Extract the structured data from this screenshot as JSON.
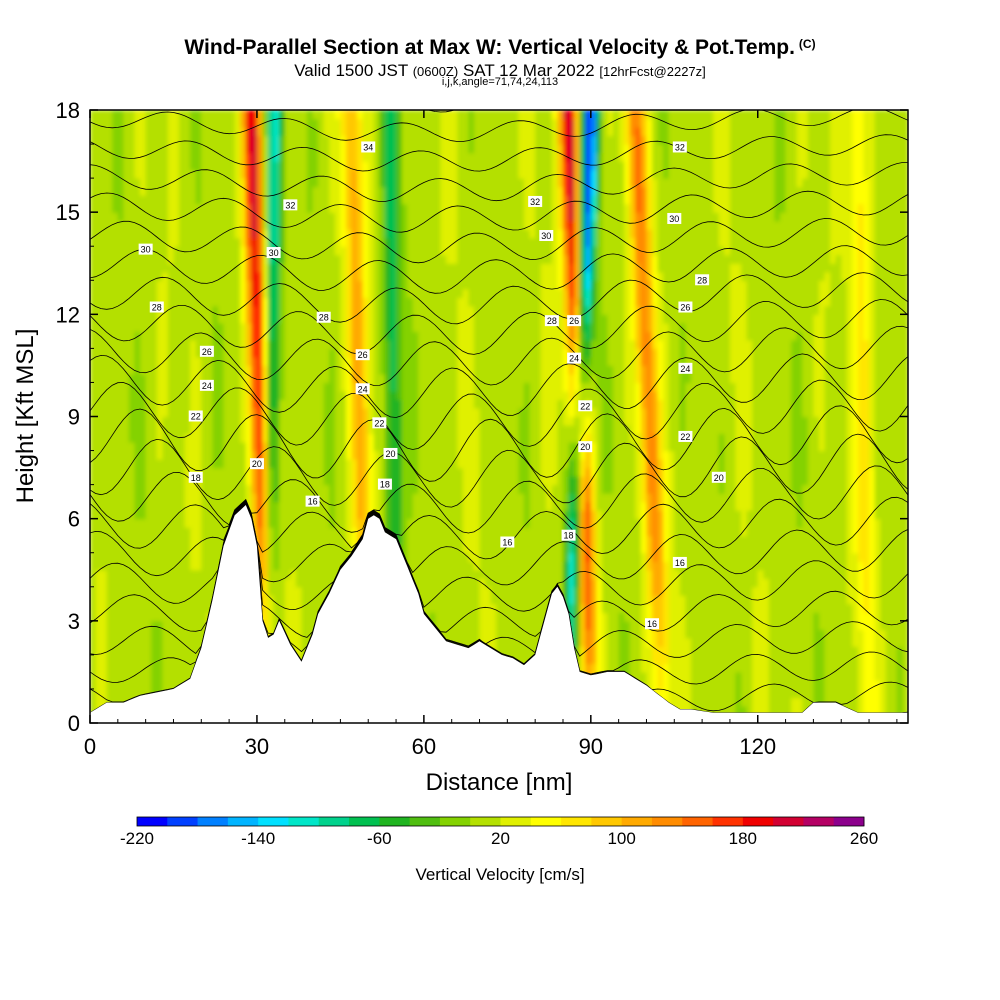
{
  "header": {
    "title": "Wind-Parallel Section at Max W: Vertical Velocity & Pot.Temp.",
    "copyright": "(C)",
    "valid_a": "Valid 1500 JST",
    "valid_utc": "(0600Z)",
    "valid_b": "SAT 12 Mar 2022",
    "forecast": "[12hrFcst@2227z]",
    "indices": "i,j,k,angle=71,74,24,113"
  },
  "chart_data": {
    "type": "heatmap",
    "xlabel": "Distance [nm]",
    "ylabel": "Height [Kft MSL]",
    "xlim": [
      0,
      147
    ],
    "ylim": [
      0,
      18
    ],
    "x_ticks": [
      0,
      30,
      60,
      90,
      120
    ],
    "y_ticks": [
      0,
      3,
      6,
      9,
      12,
      15,
      18
    ],
    "colorbar": {
      "label": "Vertical Velocity [cm/s]",
      "min": -220,
      "max": 260,
      "step": 20,
      "tick_values": [
        -220,
        -140,
        -60,
        20,
        100,
        180,
        260
      ],
      "tick_labels": [
        "-220",
        "-140",
        "-60",
        "20",
        "100",
        "180",
        "260"
      ],
      "colors": [
        "#0000ff",
        "#0040ff",
        "#0080ff",
        "#00b4ff",
        "#00e0ff",
        "#00e6c8",
        "#00d28c",
        "#00c050",
        "#20b420",
        "#50be10",
        "#84d200",
        "#b4e000",
        "#e0f000",
        "#ffff00",
        "#ffe600",
        "#ffc800",
        "#ffaa00",
        "#ff8c00",
        "#ff6400",
        "#ff3200",
        "#f00000",
        "#d20032",
        "#b40064",
        "#8c008c"
      ]
    },
    "terrain_kft": {
      "x": [
        0,
        3,
        6,
        9,
        12,
        15,
        18,
        20,
        22,
        24,
        26,
        28,
        29,
        30,
        31,
        32,
        33,
        34,
        36,
        38,
        40,
        41,
        43,
        45,
        47,
        49,
        50,
        51,
        52,
        53,
        55,
        57,
        59,
        60,
        62,
        64,
        66,
        68,
        70,
        72,
        74,
        76,
        78,
        80,
        82,
        83,
        84,
        85,
        86,
        87,
        88,
        90,
        93,
        96,
        100,
        104,
        106,
        108,
        112,
        120,
        128,
        130,
        134,
        138,
        142,
        147
      ],
      "h": [
        0.3,
        0.6,
        0.6,
        0.8,
        0.9,
        1.0,
        1.3,
        2.2,
        3.6,
        5.2,
        6.1,
        6.4,
        6.0,
        5.2,
        3.0,
        2.5,
        2.6,
        3.0,
        2.3,
        1.8,
        2.6,
        3.2,
        3.8,
        4.5,
        4.9,
        5.4,
        6.0,
        6.1,
        6.0,
        5.6,
        5.4,
        4.6,
        3.8,
        3.2,
        2.8,
        2.4,
        2.3,
        2.2,
        2.4,
        2.2,
        2.0,
        1.9,
        1.7,
        2.0,
        3.2,
        3.8,
        4.0,
        3.7,
        3.2,
        2.2,
        1.5,
        1.4,
        1.5,
        1.5,
        1.1,
        0.6,
        0.4,
        0.4,
        0.3,
        0.3,
        0.3,
        0.6,
        0.6,
        0.3,
        0.3,
        0.3
      ]
    },
    "updraft_bands": [
      {
        "x_base": 32,
        "x_top": 29,
        "w_max": 180
      },
      {
        "x_base": 50,
        "x_top": 47,
        "w_max": 90
      },
      {
        "x_base": 90,
        "x_top": 86,
        "w_max": 200
      },
      {
        "x_base": 103,
        "x_top": 98,
        "w_max": 120
      },
      {
        "x_base": 140,
        "x_top": 138,
        "w_max": 60
      }
    ],
    "downdraft_bands": [
      {
        "x_base": 86,
        "x_top": 90,
        "w_min": -200
      },
      {
        "x_base": 32,
        "x_top": 33,
        "w_min": -120
      },
      {
        "x_base": 55,
        "x_top": 54,
        "w_min": -80
      }
    ],
    "theta_levels_C": [
      16,
      18,
      20,
      22,
      24,
      26,
      28,
      30,
      32,
      34
    ],
    "theta_labels": [
      {
        "x": 40,
        "y": 6.5,
        "text": "16"
      },
      {
        "x": 75,
        "y": 5.3,
        "text": "16"
      },
      {
        "x": 106,
        "y": 4.7,
        "text": "16"
      },
      {
        "x": 101,
        "y": 2.9,
        "text": "16"
      },
      {
        "x": 19,
        "y": 7.2,
        "text": "18"
      },
      {
        "x": 53,
        "y": 7.0,
        "text": "18"
      },
      {
        "x": 86,
        "y": 5.5,
        "text": "18"
      },
      {
        "x": 30,
        "y": 7.6,
        "text": "20"
      },
      {
        "x": 54,
        "y": 7.9,
        "text": "20"
      },
      {
        "x": 89,
        "y": 8.1,
        "text": "20"
      },
      {
        "x": 113,
        "y": 7.2,
        "text": "20"
      },
      {
        "x": 19,
        "y": 9.0,
        "text": "22"
      },
      {
        "x": 52,
        "y": 8.8,
        "text": "22"
      },
      {
        "x": 89,
        "y": 9.3,
        "text": "22"
      },
      {
        "x": 107,
        "y": 8.4,
        "text": "22"
      },
      {
        "x": 21,
        "y": 9.9,
        "text": "24"
      },
      {
        "x": 49,
        "y": 9.8,
        "text": "24"
      },
      {
        "x": 87,
        "y": 10.7,
        "text": "24"
      },
      {
        "x": 107,
        "y": 10.4,
        "text": "24"
      },
      {
        "x": 21,
        "y": 10.9,
        "text": "26"
      },
      {
        "x": 49,
        "y": 10.8,
        "text": "26"
      },
      {
        "x": 87,
        "y": 11.8,
        "text": "26"
      },
      {
        "x": 107,
        "y": 12.2,
        "text": "26"
      },
      {
        "x": 12,
        "y": 12.2,
        "text": "28"
      },
      {
        "x": 42,
        "y": 11.9,
        "text": "28"
      },
      {
        "x": 83,
        "y": 11.8,
        "text": "28"
      },
      {
        "x": 110,
        "y": 13.0,
        "text": "28"
      },
      {
        "x": 10,
        "y": 13.9,
        "text": "30"
      },
      {
        "x": 33,
        "y": 13.8,
        "text": "30"
      },
      {
        "x": 82,
        "y": 14.3,
        "text": "30"
      },
      {
        "x": 105,
        "y": 14.8,
        "text": "30"
      },
      {
        "x": 36,
        "y": 15.2,
        "text": "32"
      },
      {
        "x": 80,
        "y": 15.3,
        "text": "32"
      },
      {
        "x": 106,
        "y": 16.9,
        "text": "32"
      },
      {
        "x": 50,
        "y": 16.9,
        "text": "34"
      }
    ]
  }
}
